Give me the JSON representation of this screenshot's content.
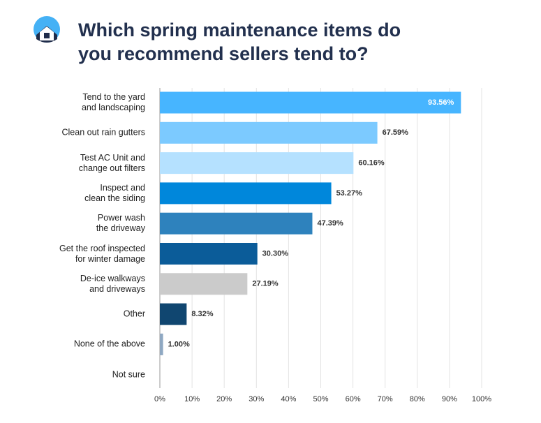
{
  "chart_data": {
    "type": "bar",
    "orientation": "horizontal",
    "title": "Which spring maintenance items do\nyou recommend sellers tend to?",
    "categories": [
      "Tend to the yard\nand landscaping",
      "Clean out rain gutters",
      "Test AC Unit and\nchange out filters",
      "Inspect and\nclean the siding",
      "Power wash\nthe driveway",
      "Get the roof inspected\nfor winter damage",
      "De-ice walkways\nand driveways",
      "Other",
      "None of the above",
      "Not sure"
    ],
    "values": [
      93.56,
      67.59,
      60.16,
      53.27,
      47.39,
      30.3,
      27.19,
      8.32,
      1.0,
      0
    ],
    "value_labels": [
      "93.56%",
      "67.59%",
      "60.16%",
      "53.27%",
      "47.39%",
      "30.30%",
      "27.19%",
      "8.32%",
      "1.00%",
      null
    ],
    "colors": [
      "#47b5ff",
      "#7ccaff",
      "#b5e1ff",
      "#0087db",
      "#2e82bd",
      "#0b5c99",
      "#cbcbcb",
      "#104670",
      "#8fa8c2",
      "#cccccc"
    ],
    "xlim": [
      0,
      100
    ],
    "xticks": [
      {
        "value": 0,
        "label": "0%"
      },
      {
        "value": 10,
        "label": "10%"
      },
      {
        "value": 20,
        "label": "20%"
      },
      {
        "value": 30,
        "label": "30%"
      },
      {
        "value": 40,
        "label": "40%"
      },
      {
        "value": 50,
        "label": "50%"
      },
      {
        "value": 60,
        "label": "60%"
      },
      {
        "value": 70,
        "label": "70%"
      },
      {
        "value": 80,
        "label": "80%"
      },
      {
        "value": 90,
        "label": "90%"
      },
      {
        "value": 100,
        "label": "100%"
      }
    ],
    "grid": true
  }
}
